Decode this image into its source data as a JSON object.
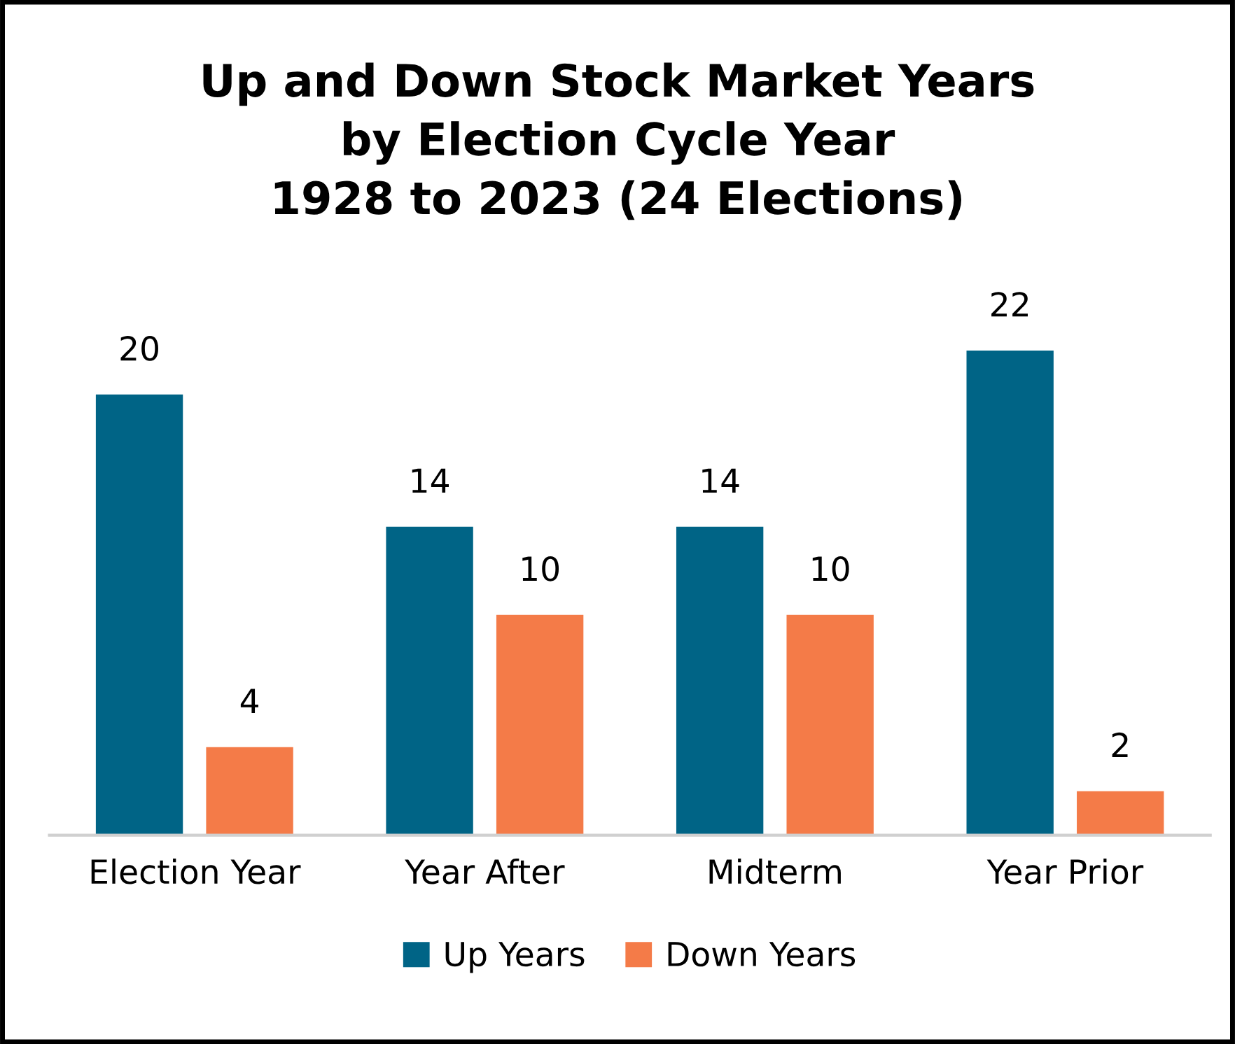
{
  "chart_data": {
    "type": "bar",
    "title": "Up and Down Stock Market Years\nby Election Cycle Year\n1928 to 2023 (24 Elections)",
    "categories": [
      "Election Year",
      "Year After",
      "Midterm",
      "Year Prior"
    ],
    "series": [
      {
        "name": "Up Years",
        "color": "#006486",
        "values": [
          20,
          14,
          14,
          22
        ]
      },
      {
        "name": "Down Years",
        "color": "#f47b48",
        "values": [
          4,
          10,
          10,
          2
        ]
      }
    ],
    "data_labels": true,
    "grid": false,
    "legend": "bottom"
  }
}
